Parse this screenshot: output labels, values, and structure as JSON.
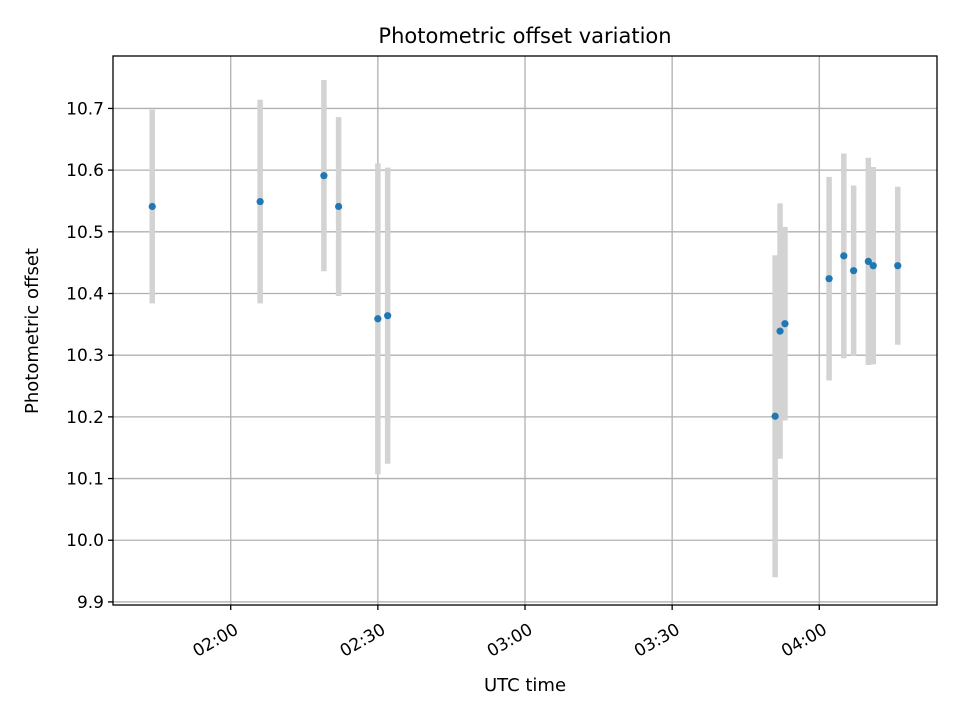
{
  "chart_data": {
    "type": "scatter",
    "title": "Photometric offset variation",
    "xlabel": "UTC time",
    "ylabel": "Photometric offset",
    "grid": true,
    "colors": {
      "points": "#1f77b4",
      "errorbars": "#d3d3d3",
      "grid": "#b0b0b0"
    },
    "x_ticks": [
      "02:00",
      "02:30",
      "03:00",
      "03:30",
      "04:00"
    ],
    "y_ticks": [
      "9.9",
      "10.0",
      "10.1",
      "10.2",
      "10.3",
      "10.4",
      "10.5",
      "10.6",
      "10.7"
    ],
    "xlim": [
      "01:36",
      "04:24"
    ],
    "ylim": [
      9.895,
      10.785
    ],
    "series": [
      {
        "points": [
          {
            "time": "01:44",
            "y": 10.541,
            "err": 0.157
          },
          {
            "time": "02:06",
            "y": 10.549,
            "err": 0.165
          },
          {
            "time": "02:19",
            "y": 10.591,
            "err": 0.155
          },
          {
            "time": "02:22",
            "y": 10.541,
            "err": 0.145
          },
          {
            "time": "02:30",
            "y": 10.359,
            "err": 0.252
          },
          {
            "time": "02:32",
            "y": 10.364,
            "err": 0.24
          },
          {
            "time": "03:51",
            "y": 10.201,
            "err": 0.261
          },
          {
            "time": "03:52",
            "y": 10.339,
            "err": 0.207
          },
          {
            "time": "03:53",
            "y": 10.351,
            "err": 0.157
          },
          {
            "time": "04:02",
            "y": 10.424,
            "err": 0.165
          },
          {
            "time": "04:05",
            "y": 10.461,
            "err": 0.166
          },
          {
            "time": "04:07",
            "y": 10.437,
            "err": 0.138
          },
          {
            "time": "04:10",
            "y": 10.452,
            "err": 0.168
          },
          {
            "time": "04:11",
            "y": 10.445,
            "err": 0.16
          },
          {
            "time": "04:16",
            "y": 10.445,
            "err": 0.128
          }
        ]
      }
    ]
  }
}
